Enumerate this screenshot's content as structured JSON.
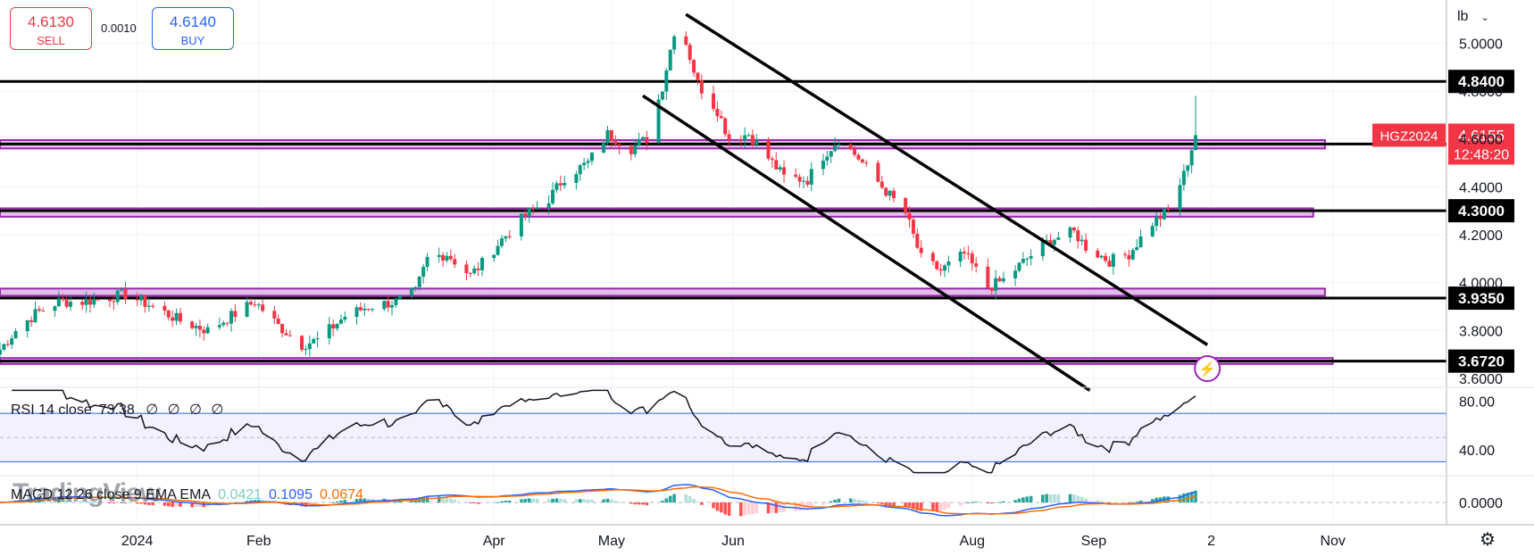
{
  "trade": {
    "sell_price": "4.6130",
    "sell_label": "SELL",
    "spread": "0.0010",
    "buy_price": "4.6140",
    "buy_label": "BUY"
  },
  "unit": "lb",
  "watermark": "TradingView",
  "colors": {
    "up": "#089981",
    "down": "#f23645",
    "zone_line": "#9c27b0",
    "zone_fill": "#e1bee7",
    "rsi": "#131722",
    "macd": "#2962ff",
    "signal": "#ff6d00",
    "band": "#2962ff"
  },
  "price_axis": {
    "ticks": [
      5.0,
      4.8,
      4.6,
      4.4,
      4.2,
      4.0,
      3.8,
      3.6
    ],
    "tick_labels": [
      "5.0000",
      "4.8000",
      "4.6000",
      "4.4000",
      "4.2000",
      "4.0000",
      "3.8000",
      "3.6000"
    ]
  },
  "time_axis": {
    "labels": [
      "2024",
      "Feb",
      "Apr",
      "May",
      "Jun",
      "Aug",
      "Sep",
      "2",
      "Nov"
    ]
  },
  "levels": [
    {
      "value": 4.84,
      "label": "4.8400"
    },
    {
      "value": 4.5785,
      "label": "4.5785"
    },
    {
      "value": 4.3,
      "label": "4.3000"
    },
    {
      "value": 3.935,
      "label": "3.9350"
    },
    {
      "value": 3.672,
      "label": "3.6720"
    }
  ],
  "zones": [
    {
      "low": 4.56,
      "high": 4.595,
      "end": "2024-10-30"
    },
    {
      "low": 4.275,
      "high": 4.31,
      "end": "2024-10-27"
    },
    {
      "low": 3.945,
      "high": 3.975,
      "end": "2024-10-30"
    },
    {
      "low": 3.66,
      "high": 3.685,
      "end": "2024-11-01"
    }
  ],
  "channel": [
    {
      "from": {
        "t": "2024-05-20",
        "p": 5.12
      },
      "to": {
        "t": "2024-09-30",
        "p": 3.74
      }
    },
    {
      "from": {
        "t": "2024-05-09",
        "p": 4.78
      },
      "to": {
        "t": "2024-08-31",
        "p": 3.55
      }
    }
  ],
  "last_price": {
    "symbol": "HGZ2024",
    "price": "4.6155",
    "countdown": "12:48:20"
  },
  "rsi": {
    "label": "RSI 14 close",
    "value": "73.38",
    "placeholders": [
      "∅",
      "∅",
      "∅",
      "∅"
    ],
    "ticks": [
      "80.00",
      "40.00"
    ],
    "upper": 70,
    "lower": 30,
    "mid": 50
  },
  "macd": {
    "label": "MACD 12 26 close 9 EMA EMA",
    "hist": "0.0421",
    "macd": "0.1095",
    "signal": "0.0674",
    "ticks": [
      "0.0000"
    ]
  },
  "chart_data": {
    "type": "candlestick",
    "symbol": "HGZ2024",
    "x_start": "2023-11-27",
    "x_end": "2024-11-30",
    "ylim": [
      3.57,
      5.18
    ],
    "y_scale": "linear",
    "grid": true,
    "anchors": [
      [
        "2023-11-27",
        3.72
      ],
      [
        "2023-12-01",
        3.8
      ],
      [
        "2023-12-06",
        3.87
      ],
      [
        "2023-12-12",
        3.92
      ],
      [
        "2023-12-18",
        3.92
      ],
      [
        "2023-12-22",
        3.93
      ],
      [
        "2023-12-29",
        3.95
      ],
      [
        "2024-01-05",
        3.9
      ],
      [
        "2024-01-12",
        3.84
      ],
      [
        "2024-01-19",
        3.8
      ],
      [
        "2024-01-25",
        3.86
      ],
      [
        "2024-01-31",
        3.92
      ],
      [
        "2024-02-06",
        3.82
      ],
      [
        "2024-02-12",
        3.74
      ],
      [
        "2024-02-16",
        3.76
      ],
      [
        "2024-02-23",
        3.86
      ],
      [
        "2024-02-29",
        3.9
      ],
      [
        "2024-03-07",
        3.92
      ],
      [
        "2024-03-12",
        3.96
      ],
      [
        "2024-03-15",
        4.1
      ],
      [
        "2024-03-20",
        4.12
      ],
      [
        "2024-03-26",
        4.03
      ],
      [
        "2024-03-29",
        4.08
      ],
      [
        "2024-04-03",
        4.18
      ],
      [
        "2024-04-09",
        4.28
      ],
      [
        "2024-04-15",
        4.35
      ],
      [
        "2024-04-19",
        4.44
      ],
      [
        "2024-04-25",
        4.5
      ],
      [
        "2024-04-30",
        4.62
      ],
      [
        "2024-05-06",
        4.56
      ],
      [
        "2024-05-10",
        4.6
      ],
      [
        "2024-05-14",
        4.82
      ],
      [
        "2024-05-17",
        5.05
      ],
      [
        "2024-05-20",
        5.0
      ],
      [
        "2024-05-23",
        4.83
      ],
      [
        "2024-05-28",
        4.72
      ],
      [
        "2024-05-31",
        4.6
      ],
      [
        "2024-06-05",
        4.62
      ],
      [
        "2024-06-10",
        4.52
      ],
      [
        "2024-06-14",
        4.44
      ],
      [
        "2024-06-20",
        4.43
      ],
      [
        "2024-06-24",
        4.53
      ],
      [
        "2024-06-28",
        4.6
      ],
      [
        "2024-07-03",
        4.52
      ],
      [
        "2024-07-09",
        4.4
      ],
      [
        "2024-07-15",
        4.29
      ],
      [
        "2024-07-19",
        4.1
      ],
      [
        "2024-07-24",
        4.05
      ],
      [
        "2024-07-30",
        4.12
      ],
      [
        "2024-08-05",
        3.98
      ],
      [
        "2024-08-09",
        4.01
      ],
      [
        "2024-08-15",
        4.1
      ],
      [
        "2024-08-21",
        4.18
      ],
      [
        "2024-08-27",
        4.21
      ],
      [
        "2024-08-30",
        4.15
      ],
      [
        "2024-09-05",
        4.09
      ],
      [
        "2024-09-10",
        4.12
      ],
      [
        "2024-09-16",
        4.25
      ],
      [
        "2024-09-20",
        4.3
      ],
      [
        "2024-09-24",
        4.45
      ],
      [
        "2024-09-27",
        4.6155
      ]
    ],
    "last": {
      "date": "2024-09-27",
      "open": 4.58,
      "high": 4.78,
      "low": 4.56,
      "close": 4.6155
    }
  }
}
